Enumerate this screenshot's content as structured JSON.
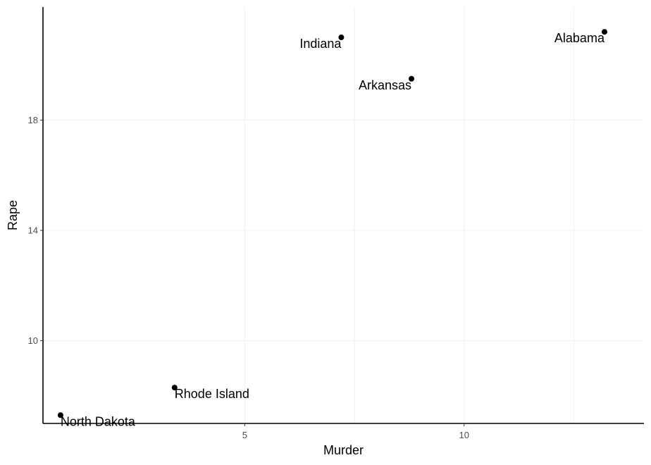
{
  "chart_data": {
    "type": "scatter",
    "title": "",
    "xlabel": "Murder",
    "ylabel": "Rape",
    "xlim": [
      0.4,
      14.1
    ],
    "ylim": [
      7.0,
      22.1
    ],
    "x_ticks": [
      5,
      10
    ],
    "y_ticks": [
      10,
      14,
      18
    ],
    "grid": true,
    "points": [
      {
        "label": "Alabama",
        "x": 13.2,
        "y": 21.2,
        "label_anchor": "end"
      },
      {
        "label": "Indiana",
        "x": 7.2,
        "y": 21.0,
        "label_anchor": "end"
      },
      {
        "label": "Arkansas",
        "x": 8.8,
        "y": 19.5,
        "label_anchor": "end"
      },
      {
        "label": "Rhode Island",
        "x": 3.4,
        "y": 8.3,
        "label_anchor": "start"
      },
      {
        "label": "North Dakota",
        "x": 0.8,
        "y": 7.3,
        "label_anchor": "start"
      }
    ]
  },
  "colors": {
    "point": "#000000",
    "grid": "#f0f0f0",
    "tick_text": "#4d4d4d"
  }
}
